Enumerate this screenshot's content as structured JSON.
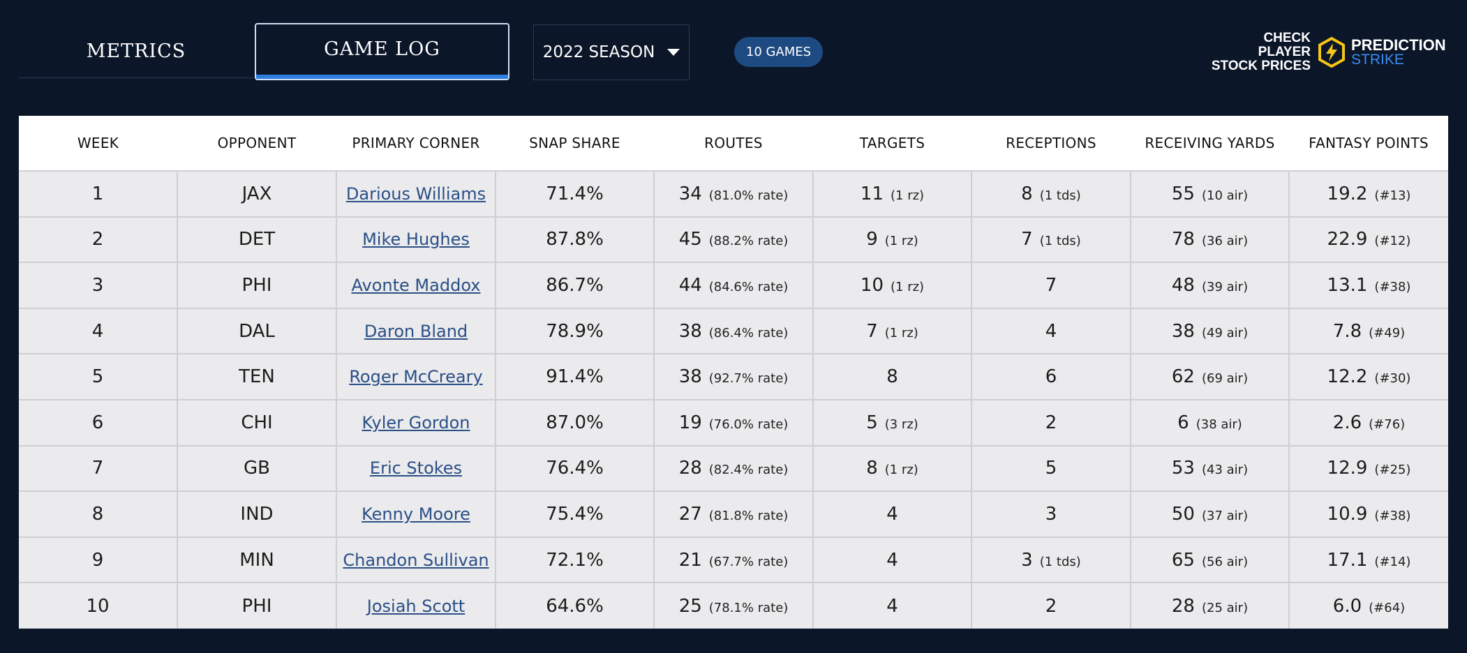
{
  "tabs": {
    "metrics_label": "METRICS",
    "gamelog_label": "GAME LOG"
  },
  "season_select": {
    "value": "2022 SEASON"
  },
  "games_badge": "10 GAMES",
  "promo": {
    "cta_line1": "CHECK PLAYER",
    "cta_line2": "STOCK PRICES",
    "brand_line1": "PREDICTION",
    "brand_line2": "STRIKE",
    "brand_color": "#3b8cf2",
    "logo_color": "#f5c518"
  },
  "table": {
    "headers": [
      "WEEK",
      "OPPONENT",
      "PRIMARY CORNER",
      "SNAP SHARE",
      "ROUTES",
      "TARGETS",
      "RECEPTIONS",
      "RECEIVING YARDS",
      "FANTASY POINTS"
    ],
    "rows": [
      {
        "week": "1",
        "opp": "JAX",
        "corner": "Darious Williams",
        "snap": "71.4%",
        "routes": "34",
        "routes_sub": "(81.0% rate)",
        "targets": "11",
        "targets_sub": "(1 rz)",
        "rec": "8",
        "rec_sub": "(1 tds)",
        "yards": "55",
        "yards_sub": "(10 air)",
        "fp": "19.2",
        "fp_sub": "(#13)"
      },
      {
        "week": "2",
        "opp": "DET",
        "corner": "Mike Hughes",
        "snap": "87.8%",
        "routes": "45",
        "routes_sub": "(88.2% rate)",
        "targets": "9",
        "targets_sub": "(1 rz)",
        "rec": "7",
        "rec_sub": "(1 tds)",
        "yards": "78",
        "yards_sub": "(36 air)",
        "fp": "22.9",
        "fp_sub": "(#12)"
      },
      {
        "week": "3",
        "opp": "PHI",
        "corner": "Avonte Maddox",
        "snap": "86.7%",
        "routes": "44",
        "routes_sub": "(84.6% rate)",
        "targets": "10",
        "targets_sub": "(1 rz)",
        "rec": "7",
        "rec_sub": "",
        "yards": "48",
        "yards_sub": "(39 air)",
        "fp": "13.1",
        "fp_sub": "(#38)"
      },
      {
        "week": "4",
        "opp": "DAL",
        "corner": "Daron Bland",
        "snap": "78.9%",
        "routes": "38",
        "routes_sub": "(86.4% rate)",
        "targets": "7",
        "targets_sub": "(1 rz)",
        "rec": "4",
        "rec_sub": "",
        "yards": "38",
        "yards_sub": "(49 air)",
        "fp": "7.8",
        "fp_sub": "(#49)"
      },
      {
        "week": "5",
        "opp": "TEN",
        "corner": "Roger McCreary",
        "snap": "91.4%",
        "routes": "38",
        "routes_sub": "(92.7% rate)",
        "targets": "8",
        "targets_sub": "",
        "rec": "6",
        "rec_sub": "",
        "yards": "62",
        "yards_sub": "(69 air)",
        "fp": "12.2",
        "fp_sub": "(#30)"
      },
      {
        "week": "6",
        "opp": "CHI",
        "corner": "Kyler Gordon",
        "snap": "87.0%",
        "routes": "19",
        "routes_sub": "(76.0% rate)",
        "targets": "5",
        "targets_sub": "(3 rz)",
        "rec": "2",
        "rec_sub": "",
        "yards": "6",
        "yards_sub": "(38 air)",
        "fp": "2.6",
        "fp_sub": "(#76)"
      },
      {
        "week": "7",
        "opp": "GB",
        "corner": "Eric Stokes",
        "snap": "76.4%",
        "routes": "28",
        "routes_sub": "(82.4% rate)",
        "targets": "8",
        "targets_sub": "(1 rz)",
        "rec": "5",
        "rec_sub": "",
        "yards": "53",
        "yards_sub": "(43 air)",
        "fp": "12.9",
        "fp_sub": "(#25)"
      },
      {
        "week": "8",
        "opp": "IND",
        "corner": "Kenny Moore",
        "snap": "75.4%",
        "routes": "27",
        "routes_sub": "(81.8% rate)",
        "targets": "4",
        "targets_sub": "",
        "rec": "3",
        "rec_sub": "",
        "yards": "50",
        "yards_sub": "(37 air)",
        "fp": "10.9",
        "fp_sub": "(#38)"
      },
      {
        "week": "9",
        "opp": "MIN",
        "corner": "Chandon Sullivan",
        "snap": "72.1%",
        "routes": "21",
        "routes_sub": "(67.7% rate)",
        "targets": "4",
        "targets_sub": "",
        "rec": "3",
        "rec_sub": "(1 tds)",
        "yards": "65",
        "yards_sub": "(56 air)",
        "fp": "17.1",
        "fp_sub": "(#14)"
      },
      {
        "week": "10",
        "opp": "PHI",
        "corner": "Josiah Scott",
        "snap": "64.6%",
        "routes": "25",
        "routes_sub": "(78.1% rate)",
        "targets": "4",
        "targets_sub": "",
        "rec": "2",
        "rec_sub": "",
        "yards": "28",
        "yards_sub": "(25 air)",
        "fp": "6.0",
        "fp_sub": "(#64)"
      }
    ]
  }
}
